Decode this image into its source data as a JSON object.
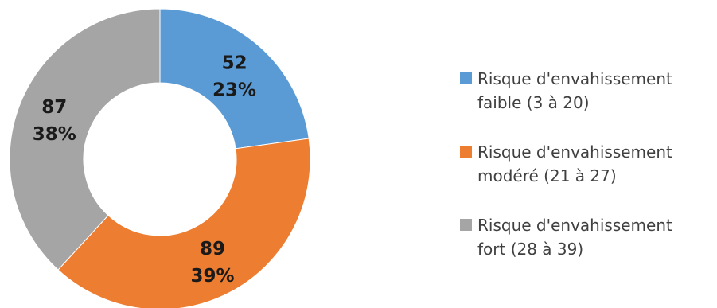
{
  "chart_data": {
    "type": "pie",
    "donut": true,
    "title": "",
    "legend_position": "right",
    "slices": [
      {
        "value": 52,
        "percent": "23%",
        "color": "#5B9BD5",
        "legend_line1": "Risque d'envahissement",
        "legend_line2": "faible (3 à 20)"
      },
      {
        "value": 89,
        "percent": "39%",
        "color": "#ED7D31",
        "legend_line1": "Risque d'envahissement",
        "legend_line2": "modéré (21 à 27)"
      },
      {
        "value": 87,
        "percent": "38%",
        "color": "#A5A5A5",
        "legend_line1": "Risque d'envahissement",
        "legend_line2": "fort (28 à 39)"
      }
    ]
  }
}
